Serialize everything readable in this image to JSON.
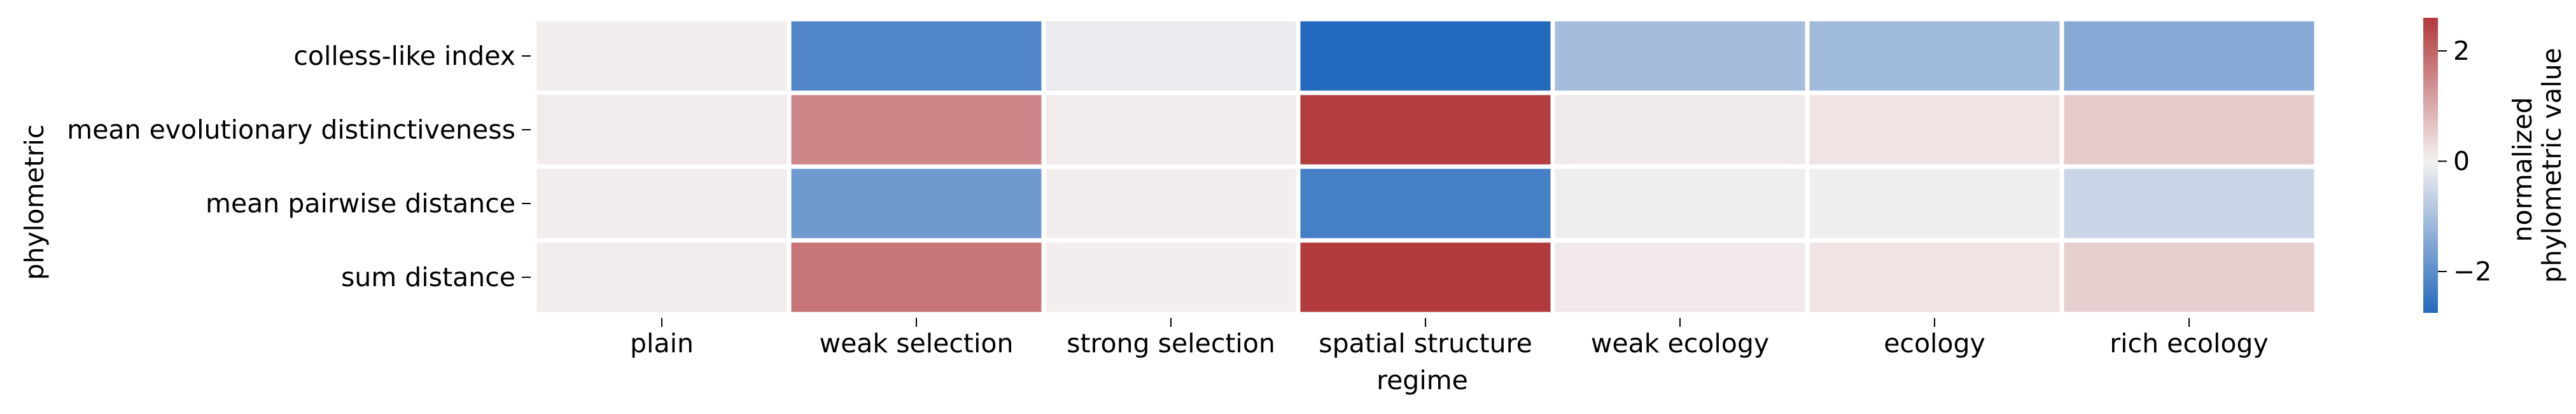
{
  "chart_data": {
    "type": "heatmap",
    "title": "",
    "xlabel": "regime",
    "ylabel": "phylometric",
    "x_categories": [
      "plain",
      "weak selection",
      "strong selection",
      "spatial structure",
      "weak ecology",
      "ecology",
      "rich ecology"
    ],
    "y_categories": [
      "colless-like index",
      "mean evolutionary distinctiveness",
      "mean pairwise distance",
      "sum distance"
    ],
    "values": [
      [
        0.05,
        -2.15,
        -0.12,
        -2.75,
        -1.05,
        -1.1,
        -1.45
      ],
      [
        0.08,
        1.5,
        0.07,
        2.55,
        0.1,
        0.2,
        0.55
      ],
      [
        0.06,
        -1.75,
        0.04,
        -2.3,
        -0.08,
        -0.05,
        -0.55
      ],
      [
        0.06,
        1.75,
        0.04,
        2.6,
        0.12,
        0.2,
        0.5
      ]
    ],
    "colorbar": {
      "label_lines": [
        "normalized",
        "phylometric value"
      ],
      "ticks": [
        2,
        0,
        -2
      ],
      "vmin": -2.75,
      "vmax": 2.6,
      "colormap": "vlag",
      "low_color": "#2369bd",
      "mid_color": "#f4f1f1",
      "high_color": "#b2393c"
    },
    "grid": false,
    "cell_border_color": "#ffffff"
  }
}
